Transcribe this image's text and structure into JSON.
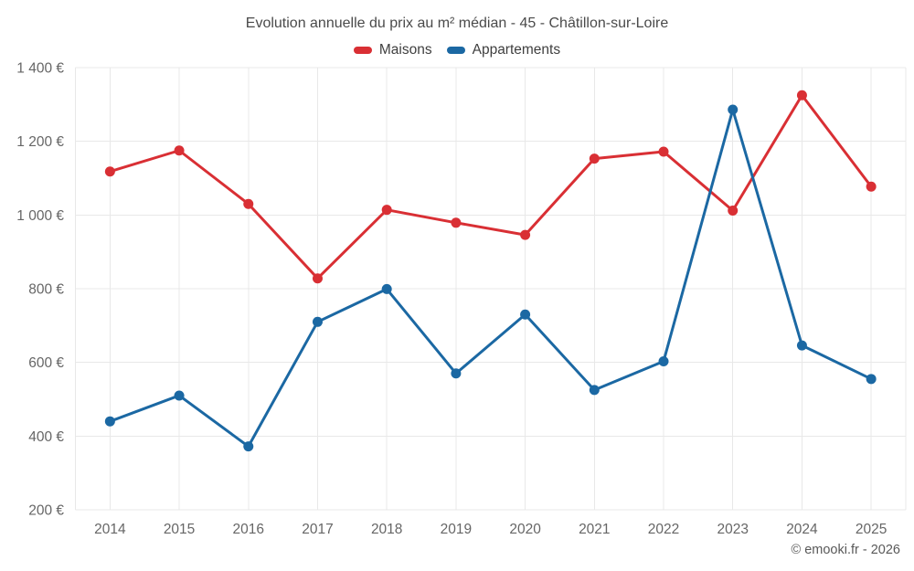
{
  "header": {
    "title": "Evolution annuelle du prix au m² médian - 45 - Châtillon-sur-Loire"
  },
  "legend": {
    "items": [
      {
        "label": "Maisons",
        "color": "#d92f34"
      },
      {
        "label": "Appartements",
        "color": "#1b68a3"
      }
    ]
  },
  "footer": {
    "attribution": "© emooki.fr - 2026"
  },
  "chart_data": {
    "type": "line",
    "title": "Evolution annuelle du prix au m² médian - 45 - Châtillon-sur-Loire",
    "categories": [
      "2014",
      "2015",
      "2016",
      "2017",
      "2018",
      "2019",
      "2020",
      "2021",
      "2022",
      "2023",
      "2024",
      "2025"
    ],
    "series": [
      {
        "name": "Maisons",
        "color": "#d92f34",
        "values": [
          1118,
          1175,
          1030,
          828,
          1014,
          979,
          946,
          1153,
          1172,
          1012,
          1325,
          1077
        ]
      },
      {
        "name": "Appartements",
        "color": "#1b68a3",
        "values": [
          440,
          510,
          372,
          710,
          799,
          570,
          730,
          525,
          603,
          1286,
          646,
          555
        ]
      }
    ],
    "xlabel": "",
    "ylabel": "",
    "ylim": [
      200,
      1400
    ],
    "y_tick_step": 200,
    "y_unit": "€",
    "grid": true,
    "legend_position": "top"
  }
}
